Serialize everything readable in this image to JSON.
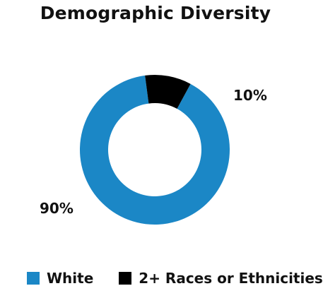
{
  "chart_data": {
    "type": "pie",
    "title": "Demographic Diversity",
    "donut": true,
    "categories": [
      "White",
      "2+ Races or Ethnicities"
    ],
    "values": [
      90,
      10
    ],
    "labels": [
      "90%",
      "10%"
    ],
    "colors": [
      "#1B87C6",
      "#000000"
    ],
    "legend_position": "bottom"
  }
}
